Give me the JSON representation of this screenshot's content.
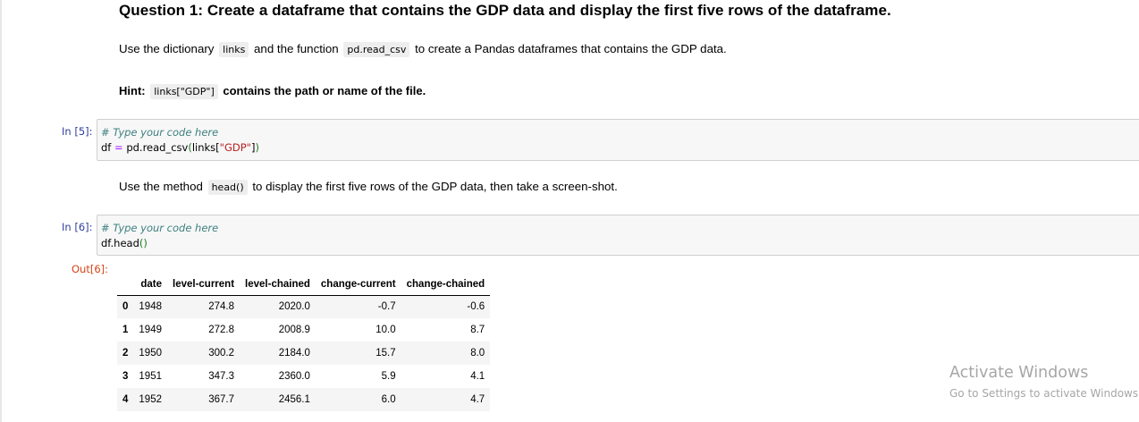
{
  "markdown": {
    "heading": "Question 1: Create a dataframe that contains the GDP data and display the first five rows of the dataframe.",
    "p1_before": "Use the dictionary",
    "p1_code1": "links",
    "p1_mid": "and the function",
    "p1_code2": "pd.read_csv",
    "p1_after": "to create a Pandas dataframes that contains the GDP data.",
    "hint_label": "Hint:",
    "hint_code": "links[\"GDP\"]",
    "hint_after": "contains the path or name of the file.",
    "p2_before": "Use the method",
    "p2_code": "head()",
    "p2_after": "to display the first five rows of the GDP data, then take a screen-shot."
  },
  "cell1": {
    "prompt": "In [5]:",
    "comment": "# Type your code here",
    "line2_var": "df",
    "line2_op": "=",
    "line2_call": "pd.read_csv",
    "line2_open": "(",
    "line2_arg": "links[",
    "line2_str": "\"GDP\"",
    "line2_close_bracket": "]",
    "line2_close": ")"
  },
  "cell2": {
    "prompt": "In [6]:",
    "comment": "# Type your code here",
    "line2_call": "df.head",
    "line2_parens": "()"
  },
  "output": {
    "prompt": "Out[6]:",
    "columns": [
      "",
      "date",
      "level-current",
      "level-chained",
      "change-current",
      "change-chained"
    ],
    "rows": [
      [
        "0",
        "1948",
        "274.8",
        "2020.0",
        "-0.7",
        "-0.6"
      ],
      [
        "1",
        "1949",
        "272.8",
        "2008.9",
        "10.0",
        "8.7"
      ],
      [
        "2",
        "1950",
        "300.2",
        "2184.0",
        "15.7",
        "8.0"
      ],
      [
        "3",
        "1951",
        "347.3",
        "2360.0",
        "5.9",
        "4.1"
      ],
      [
        "4",
        "1952",
        "367.7",
        "2456.1",
        "6.0",
        "4.7"
      ]
    ]
  },
  "watermark": {
    "line1": "Activate Windows",
    "line2": "Go to Settings to activate Windows."
  }
}
